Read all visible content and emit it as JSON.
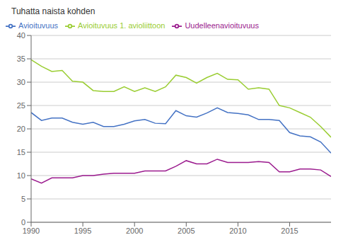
{
  "chart_data": {
    "type": "line",
    "ylabel": "Tuhatta naista kohden",
    "x": [
      1990,
      1991,
      1992,
      1993,
      1994,
      1995,
      1996,
      1997,
      1998,
      1999,
      2000,
      2001,
      2002,
      2003,
      2004,
      2005,
      2006,
      2007,
      2008,
      2009,
      2010,
      2011,
      2012,
      2013,
      2014,
      2015,
      2016,
      2017,
      2018,
      2019
    ],
    "series": [
      {
        "name": "Avioituvuus",
        "color": "#4472C4",
        "values": [
          23.5,
          21.8,
          22.3,
          22.3,
          21.4,
          21.0,
          21.4,
          20.5,
          20.5,
          21.0,
          21.7,
          22.0,
          21.2,
          21.1,
          23.9,
          22.8,
          22.5,
          23.4,
          24.5,
          23.5,
          23.3,
          23.0,
          22.0,
          22.0,
          21.8,
          19.2,
          18.5,
          18.3,
          17.2,
          14.8
        ]
      },
      {
        "name": "Avioituvuus 1. avioliittoon",
        "color": "#9ACD32",
        "values": [
          34.8,
          33.4,
          32.3,
          32.5,
          30.2,
          30.0,
          28.2,
          28.0,
          28.0,
          29.0,
          28.0,
          28.8,
          28.0,
          29.0,
          31.5,
          31.0,
          29.8,
          31.0,
          31.9,
          30.6,
          30.5,
          28.5,
          28.8,
          28.5,
          25.0,
          24.5,
          23.5,
          22.5,
          20.5,
          18.2
        ]
      },
      {
        "name": "Uudelleenavioituvuus",
        "color": "#9B1B8E",
        "values": [
          9.3,
          8.4,
          9.5,
          9.5,
          9.5,
          10.0,
          10.0,
          10.3,
          10.5,
          10.5,
          10.5,
          11.0,
          11.0,
          11.0,
          12.0,
          13.2,
          12.5,
          12.5,
          13.5,
          12.8,
          12.8,
          12.8,
          13.0,
          12.8,
          10.8,
          10.8,
          11.4,
          11.4,
          11.2,
          9.8
        ]
      }
    ],
    "xlim": [
      1990,
      2019
    ],
    "xticks": [
      1990,
      1995,
      2000,
      2005,
      2010,
      2015
    ],
    "ylim": [
      0,
      40
    ],
    "yticks": [
      0,
      5,
      10,
      15,
      20,
      25,
      30,
      35,
      40
    ],
    "grid": true,
    "legend": "upper left"
  }
}
